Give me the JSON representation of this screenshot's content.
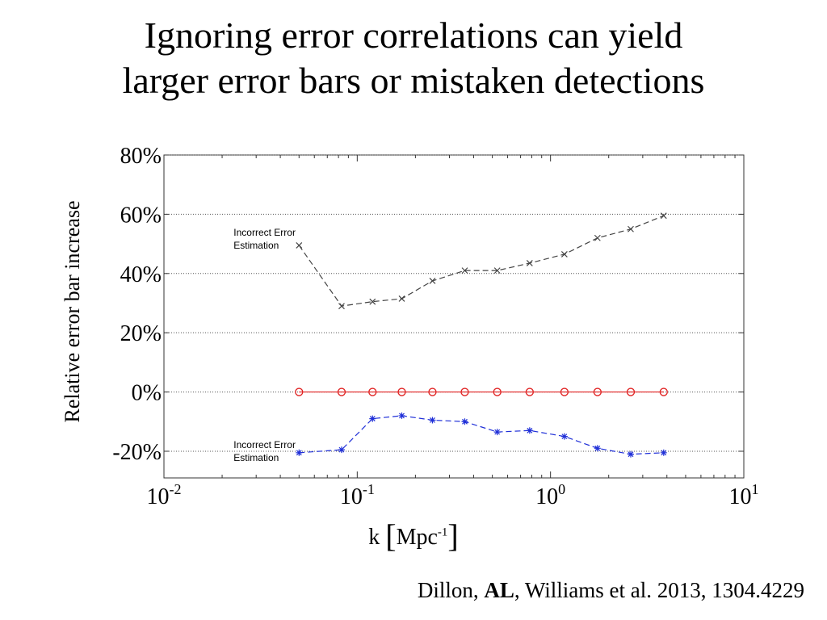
{
  "slide": {
    "title_line1": "Ignoring error correlations can yield",
    "title_line2": "larger error bars or mistaken detections",
    "citation_pre": "Dillon, ",
    "citation_bold": "AL",
    "citation_post": ", Williams et al. 2013, 1304.4229"
  },
  "chart_data": {
    "type": "line",
    "title": "",
    "ylabel": "Relative error bar increase",
    "xlabel": "k",
    "xlabel_unit": "Mpc",
    "xlabel_unit_exp": "-1",
    "xscale": "log",
    "xlim": [
      0.01,
      10
    ],
    "ylim": [
      -29,
      80
    ],
    "grid": "horizontal-dotted",
    "x_ticks": [
      {
        "value": 0.01,
        "base": "10",
        "exp": "-2"
      },
      {
        "value": 0.1,
        "base": "10",
        "exp": "-1"
      },
      {
        "value": 1,
        "base": "10",
        "exp": "0"
      },
      {
        "value": 10,
        "base": "10",
        "exp": "1"
      }
    ],
    "y_ticks": [
      {
        "value": 80,
        "label": "80%"
      },
      {
        "value": 60,
        "label": "60%"
      },
      {
        "value": 40,
        "label": "40%"
      },
      {
        "value": 20,
        "label": "20%"
      },
      {
        "value": 0,
        "label": "0%"
      },
      {
        "value": -20,
        "label": "-20%"
      }
    ],
    "x": [
      0.05,
      0.083,
      0.12,
      0.17,
      0.245,
      0.36,
      0.53,
      0.78,
      1.18,
      1.75,
      2.6,
      3.85
    ],
    "series": [
      {
        "values": [
          49.5,
          29,
          30.5,
          31.5,
          37.5,
          41,
          41,
          43.5,
          46.5,
          52,
          55,
          59.5
        ],
        "color": "#444444",
        "marker": "x",
        "dash": "dashed",
        "annotation": [
          "Incorrect Error",
          "Estimation"
        ]
      },
      {
        "values": [
          0,
          0,
          0,
          0,
          0,
          0,
          0,
          0,
          0,
          0,
          0,
          0
        ],
        "color": "#e02020",
        "marker": "o",
        "dash": "solid"
      },
      {
        "values": [
          -20.5,
          -19.5,
          -9,
          -8,
          -9.5,
          -10,
          -13.5,
          -13,
          -15,
          -19,
          -21,
          -20.5
        ],
        "color": "#2030d8",
        "marker": "*",
        "dash": "dashed",
        "annotation": [
          "Incorrect Error",
          "Estimation"
        ]
      }
    ]
  }
}
